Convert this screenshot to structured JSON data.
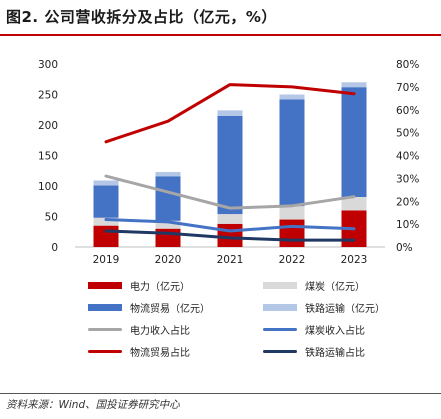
{
  "header": {
    "title": "图2. 公司营收拆分及占比（亿元，%）"
  },
  "footer": {
    "source": "资料来源：Wind、国投证券研究中心"
  },
  "chart_data": {
    "type": "bar",
    "stacked": true,
    "categories": [
      "2019",
      "2020",
      "2021",
      "2022",
      "2023"
    ],
    "ylim": [
      0,
      300
    ],
    "y_ticks": [
      0,
      50,
      100,
      150,
      200,
      250,
      300
    ],
    "y2lim": [
      0,
      0.8
    ],
    "y2_ticks": [
      "0%",
      "10%",
      "20%",
      "30%",
      "40%",
      "50%",
      "60%",
      "70%",
      "80%"
    ],
    "grid": false,
    "legend_position": "bottom",
    "bar_series": [
      {
        "name": "电力（亿元）",
        "color": "#c00000",
        "values": [
          35,
          30,
          38,
          45,
          60
        ]
      },
      {
        "name": "煤炭（亿元）",
        "color": "#d9d9d9",
        "values": [
          13,
          13,
          16,
          22,
          22
        ]
      },
      {
        "name": "物流贸易（亿元）",
        "color": "#4472c4",
        "values": [
          53,
          73,
          161,
          175,
          180
        ]
      },
      {
        "name": "铁路运输（亿元）",
        "color": "#b4c7e7",
        "values": [
          8,
          7,
          9,
          8,
          8
        ]
      }
    ],
    "line_series": [
      {
        "name": "电力收入占比",
        "color": "#a6a6a6",
        "values": [
          0.31,
          0.24,
          0.17,
          0.18,
          0.22
        ]
      },
      {
        "name": "煤炭收入占比",
        "color": "#4472c4",
        "values": [
          0.12,
          0.11,
          0.07,
          0.09,
          0.08
        ]
      },
      {
        "name": "物流贸易占比",
        "color": "#c00000",
        "values": [
          0.46,
          0.55,
          0.71,
          0.7,
          0.67
        ]
      },
      {
        "name": "铁路运输占比",
        "color": "#203864",
        "values": [
          0.07,
          0.06,
          0.04,
          0.03,
          0.03
        ]
      }
    ]
  }
}
